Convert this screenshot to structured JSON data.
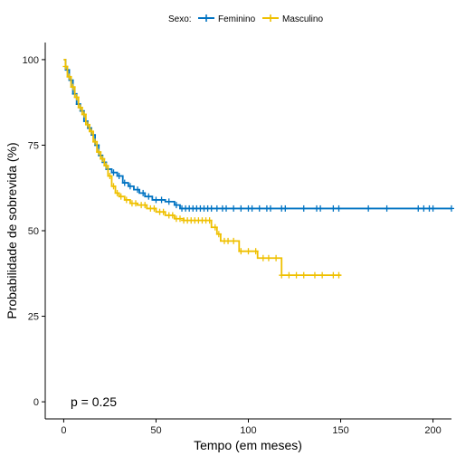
{
  "chart_data": {
    "type": "line",
    "title": "",
    "xlabel": "Tempo (em meses)",
    "ylabel": "Probabilidade de sobrevida (%)",
    "xlim": [
      -10,
      210
    ],
    "ylim": [
      -5,
      105
    ],
    "xticks": [
      0,
      50,
      100,
      150,
      200
    ],
    "yticks": [
      0,
      25,
      50,
      75,
      100
    ],
    "grid": false,
    "legend_position": "top",
    "legend_title": "Sexo:",
    "annotation": "p = 0.25",
    "series": [
      {
        "name": "Feminino",
        "color": "#0073C2",
        "steps": [
          [
            0,
            100
          ],
          [
            1,
            97
          ],
          [
            3,
            94
          ],
          [
            5,
            90
          ],
          [
            7,
            87
          ],
          [
            9,
            85
          ],
          [
            11,
            82
          ],
          [
            13,
            80
          ],
          [
            15,
            78
          ],
          [
            17,
            75
          ],
          [
            19,
            72
          ],
          [
            21,
            70
          ],
          [
            23,
            68
          ],
          [
            26,
            67
          ],
          [
            29,
            66
          ],
          [
            32,
            64
          ],
          [
            35,
            63
          ],
          [
            38,
            62
          ],
          [
            41,
            61
          ],
          [
            44,
            60
          ],
          [
            48,
            59
          ],
          [
            55,
            58.5
          ],
          [
            60,
            57.5
          ],
          [
            63,
            56.5
          ],
          [
            210,
            56.5
          ]
        ],
        "censors": [
          2,
          4,
          6,
          8,
          10,
          12,
          14,
          16,
          18,
          20,
          22,
          24,
          27,
          30,
          33,
          36,
          40,
          43,
          46,
          50,
          53,
          57,
          61,
          64,
          66,
          68,
          70,
          72,
          74,
          76,
          78,
          80,
          83,
          86,
          88,
          92,
          96,
          100,
          102,
          106,
          110,
          112,
          118,
          120,
          130,
          137,
          139,
          146,
          149,
          165,
          175,
          192,
          195,
          198,
          200,
          210
        ]
      },
      {
        "name": "Masculino",
        "color": "#EFC000",
        "steps": [
          [
            0,
            100
          ],
          [
            1,
            98
          ],
          [
            2,
            95
          ],
          [
            4,
            92
          ],
          [
            6,
            89
          ],
          [
            8,
            86
          ],
          [
            10,
            84
          ],
          [
            12,
            81
          ],
          [
            14,
            79
          ],
          [
            16,
            76
          ],
          [
            18,
            73
          ],
          [
            20,
            71
          ],
          [
            22,
            69
          ],
          [
            24,
            66
          ],
          [
            26,
            63
          ],
          [
            28,
            61
          ],
          [
            30,
            60
          ],
          [
            33,
            59
          ],
          [
            36,
            58
          ],
          [
            40,
            57.5
          ],
          [
            45,
            56.5
          ],
          [
            50,
            55.5
          ],
          [
            55,
            54.5
          ],
          [
            60,
            53.5
          ],
          [
            65,
            53
          ],
          [
            80,
            51
          ],
          [
            83,
            49
          ],
          [
            85,
            47
          ],
          [
            95,
            44
          ],
          [
            105,
            42
          ],
          [
            118,
            37
          ],
          [
            150,
            37
          ]
        ],
        "censors": [
          1,
          3,
          5,
          7,
          9,
          11,
          13,
          15,
          17,
          19,
          21,
          23,
          25,
          27,
          29,
          31,
          34,
          37,
          39,
          42,
          44,
          47,
          49,
          52,
          54,
          57,
          59,
          61,
          63,
          65,
          67,
          69,
          71,
          73,
          75,
          77,
          79,
          82,
          84,
          87,
          89,
          92,
          96,
          100,
          104,
          108,
          111,
          115,
          118,
          122,
          126,
          130,
          136,
          140,
          146,
          149
        ]
      }
    ]
  }
}
